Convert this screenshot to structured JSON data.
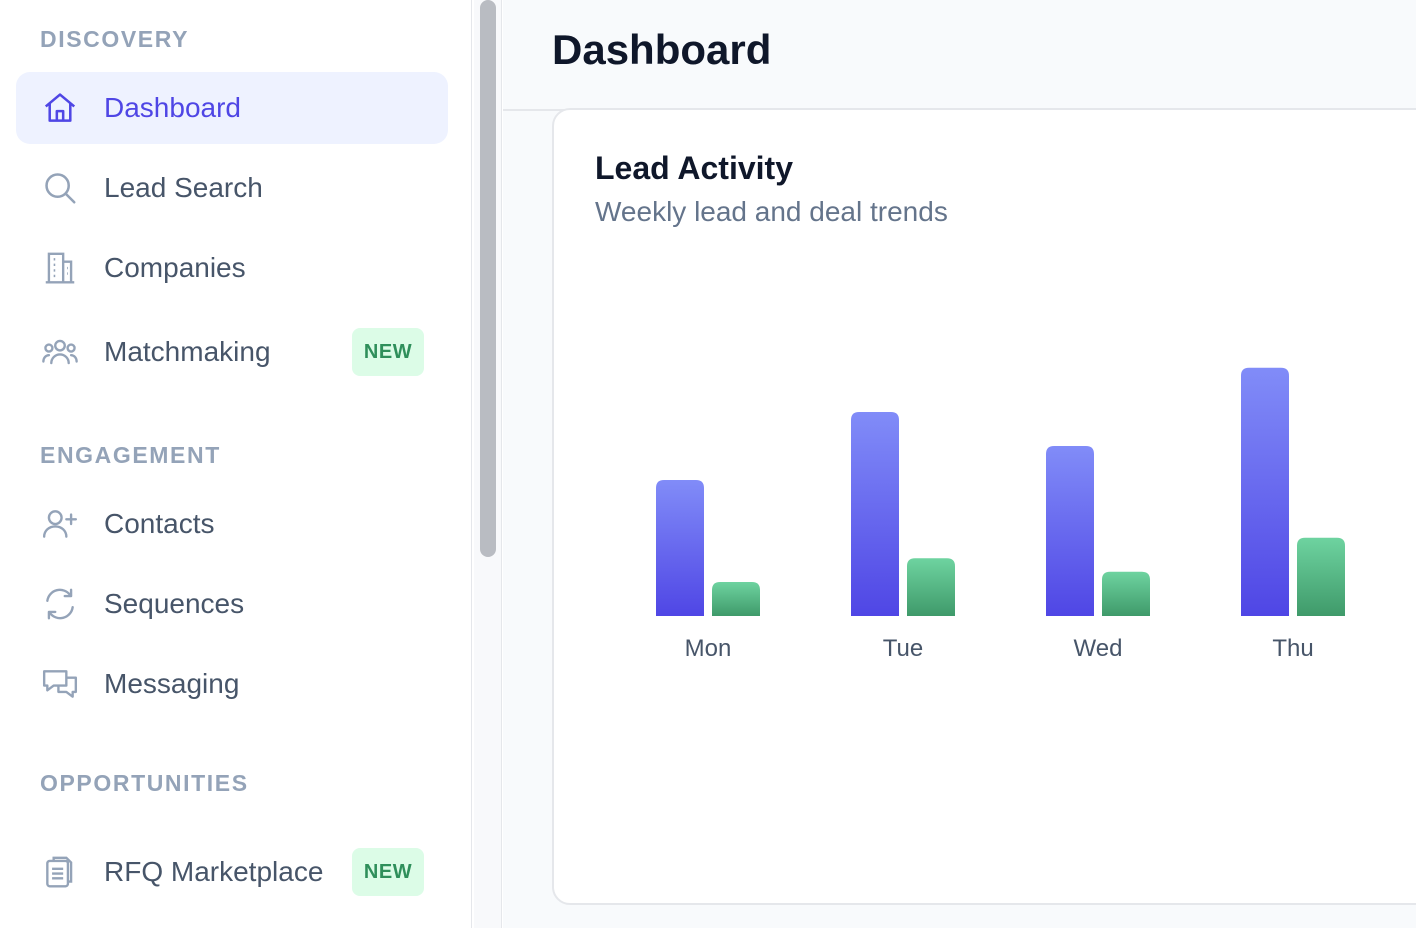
{
  "sidebar": {
    "sections": [
      {
        "label": "DISCOVERY"
      },
      {
        "label": "ENGAGEMENT"
      },
      {
        "label": "OPPORTUNITIES"
      }
    ],
    "items": [
      {
        "label": "Dashboard",
        "icon": "home-icon",
        "active": true
      },
      {
        "label": "Lead Search",
        "icon": "search-icon"
      },
      {
        "label": "Companies",
        "icon": "building-icon"
      },
      {
        "label": "Matchmaking",
        "icon": "users-group-icon",
        "badge": "NEW"
      },
      {
        "label": "Contacts",
        "icon": "user-plus-icon"
      },
      {
        "label": "Sequences",
        "icon": "refresh-icon"
      },
      {
        "label": "Messaging",
        "icon": "chat-bubbles-icon"
      },
      {
        "label": "RFQ Marketplace",
        "icon": "clipboard-icon",
        "badge": "NEW"
      }
    ]
  },
  "header": {
    "title": "Dashboard"
  },
  "card": {
    "title": "Lead Activity",
    "subtitle": "Weekly lead and deal trends"
  },
  "colors": {
    "accent": "#4f46e5",
    "leads_bar_top": "#818cf8",
    "leads_bar_bottom": "#4f46e5",
    "deals_bar_top": "#6ed3a0",
    "deals_bar_bottom": "#3f9a6a",
    "badge_bg": "#dcfce7",
    "badge_text": "#2f8f5b"
  },
  "chart_data": {
    "type": "bar",
    "title": "",
    "xlabel": "",
    "ylabel": "",
    "categories": [
      "Mon",
      "Tue",
      "Wed",
      "Thu"
    ],
    "series": [
      {
        "values": [
          40,
          60,
          50,
          73
        ]
      },
      {
        "values": [
          10,
          17,
          13,
          23
        ]
      }
    ],
    "ylim": [
      0,
      100
    ],
    "grid": false
  }
}
